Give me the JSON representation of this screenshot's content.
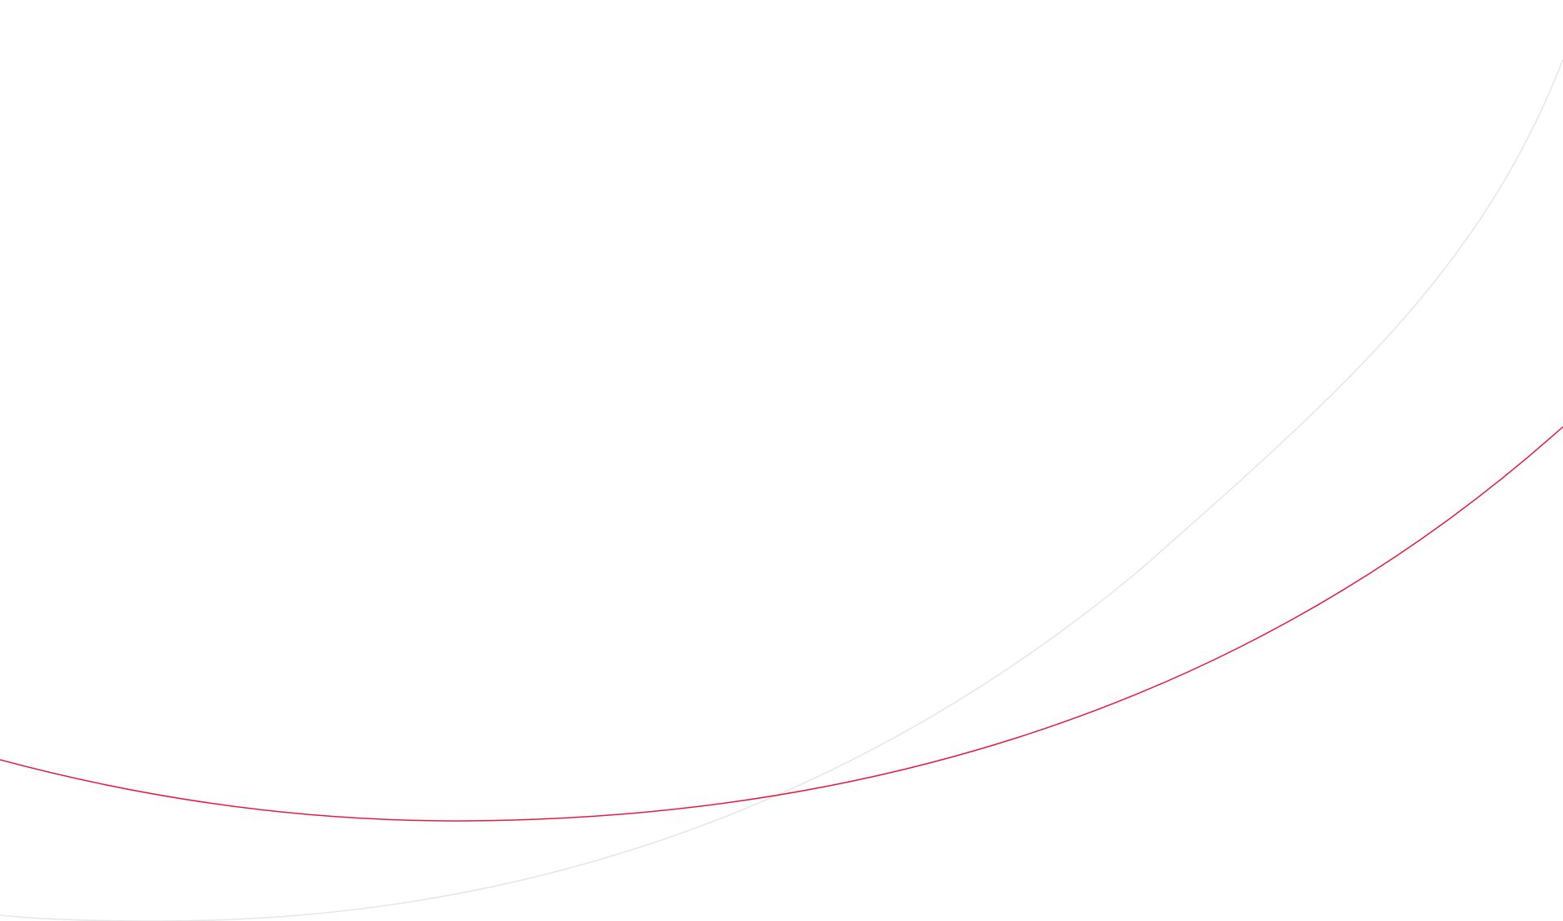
{
  "background": {
    "color": "#ffffff",
    "curves": [
      {
        "name": "accent-curve",
        "color": "#e8183c"
      },
      {
        "name": "subtle-curve",
        "color": "#e6e6e6"
      }
    ]
  }
}
